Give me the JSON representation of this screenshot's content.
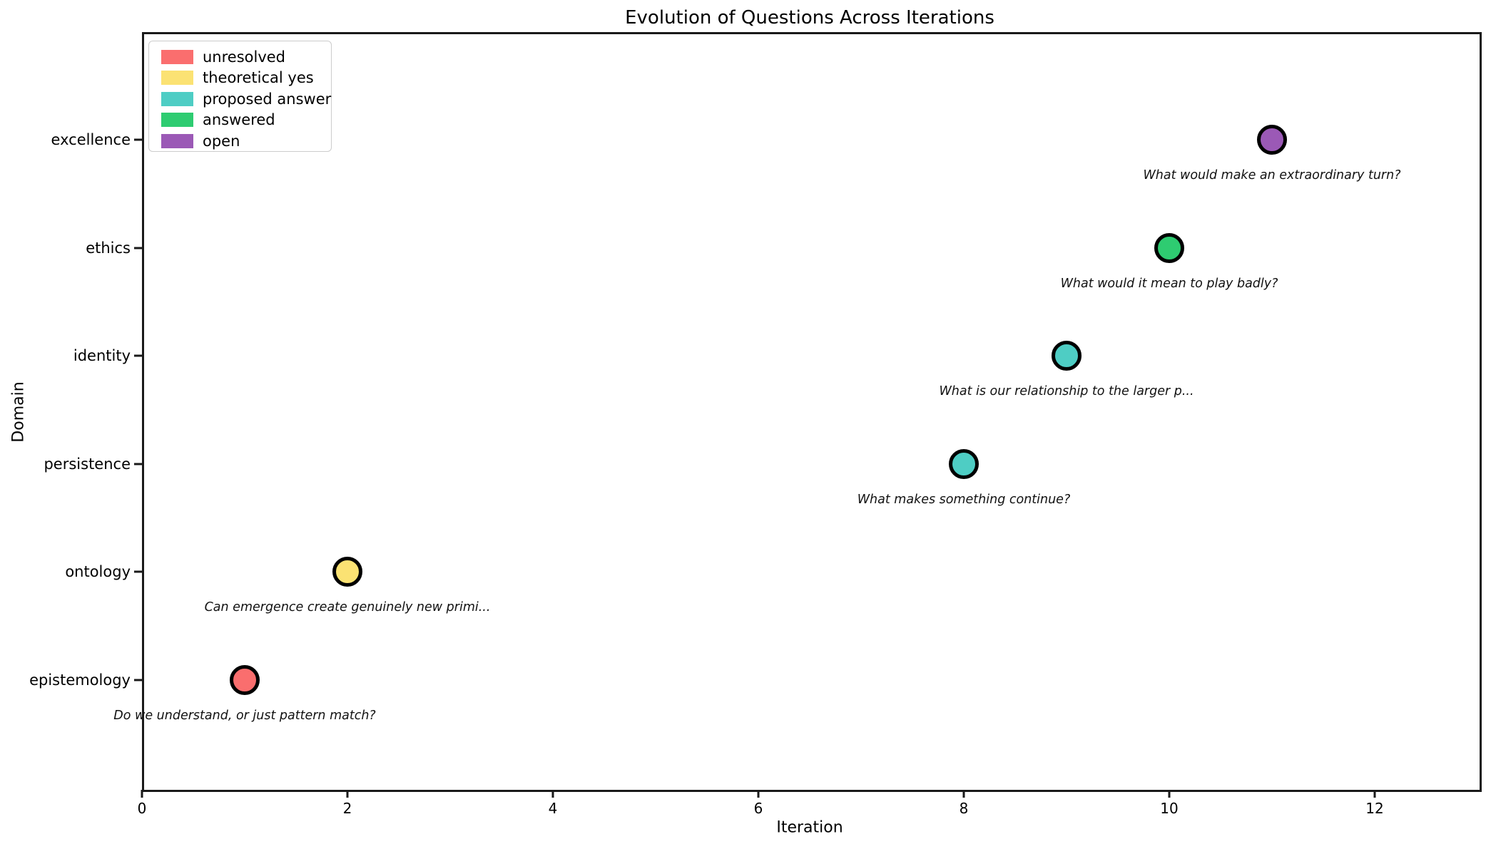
{
  "chart_data": {
    "type": "scatter",
    "title": "Evolution of Questions Across Iterations",
    "xlabel": "Iteration",
    "ylabel": "Domain",
    "xlim": [
      0,
      13
    ],
    "xticks": [
      0,
      2,
      4,
      6,
      8,
      10,
      12
    ],
    "domains": [
      "epistemology",
      "ontology",
      "persistence",
      "identity",
      "ethics",
      "excellence"
    ],
    "grid": false,
    "legend_position": "upper left",
    "legend": [
      {
        "label": "unresolved",
        "color": "#FA6E6E"
      },
      {
        "label": "theoretical yes",
        "color": "#FBE273"
      },
      {
        "label": "proposed answer",
        "color": "#4ECDC4"
      },
      {
        "label": "answered",
        "color": "#2ECC71"
      },
      {
        "label": "open",
        "color": "#9B59B6"
      }
    ],
    "points": [
      {
        "iteration": 1,
        "domain": "epistemology",
        "status": "unresolved",
        "annotation": "Do we understand, or just pattern match?"
      },
      {
        "iteration": 2,
        "domain": "ontology",
        "status": "theoretical yes",
        "annotation": "Can emergence create genuinely new primi..."
      },
      {
        "iteration": 8,
        "domain": "persistence",
        "status": "proposed answer",
        "annotation": "What makes something continue?"
      },
      {
        "iteration": 9,
        "domain": "identity",
        "status": "proposed answer",
        "annotation": "What is our relationship to the larger p..."
      },
      {
        "iteration": 10,
        "domain": "ethics",
        "status": "answered",
        "annotation": "What would it mean to play badly?"
      },
      {
        "iteration": 11,
        "domain": "excellence",
        "status": "open",
        "annotation": "What would make an extraordinary turn?"
      }
    ],
    "line_segments": [
      [
        0,
        1
      ],
      [
        2,
        3,
        4,
        5
      ]
    ],
    "line_color": "#848484",
    "marker_edge_color": "#000000"
  }
}
